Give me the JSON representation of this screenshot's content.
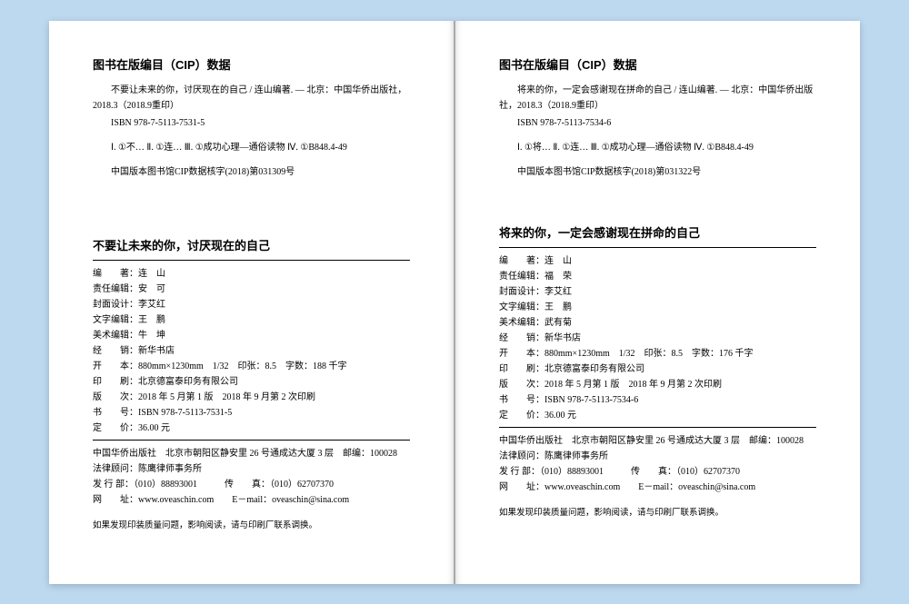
{
  "left": {
    "cip_heading": "图书在版编目（CIP）数据",
    "cip_text1": "不要让未来的你，讨厌现在的自己 / 连山编著. — 北京：中国华侨出版社，2018.3（2018.9重印）",
    "isbn": "ISBN 978-7-5113-7531-5",
    "classify": "Ⅰ. ①不… Ⅱ. ①连… Ⅲ. ①成功心理—通俗读物 Ⅳ. ①B848.4-49",
    "catalog_no": "中国版本图书馆CIP数据核字(2018)第031309号",
    "book_title": "不要让未来的你，讨厌现在的自己",
    "credits": [
      "编　　著：连　山",
      "责任编辑：安　可",
      "封面设计：李艾红",
      "文字编辑：王　鹏",
      "美术编辑：牛　坤",
      "经　　销：新华书店",
      "开　　本：880mm×1230mm　1/32　印张：8.5　字数：188 千字",
      "印　　刷：北京德富泰印务有限公司",
      "版　　次：2018 年 5 月第 1 版　2018 年 9 月第 2 次印刷",
      "书　　号：ISBN 978-7-5113-7531-5",
      "定　　价：36.00 元"
    ],
    "publisher": [
      "中国华侨出版社　北京市朝阳区静安里 26 号通成达大厦 3 层　邮编：100028",
      "法律顾问：陈鹰律师事务所",
      "发 行 部：（010）88893001　　　传　　真：（010）62707370",
      "网　　址：www.oveaschin.com　　E－mail：oveaschin@sina.com"
    ],
    "note": "如果发现印装质量问题，影响阅读，请与印刷厂联系调换。"
  },
  "right": {
    "cip_heading": "图书在版编目（CIP）数据",
    "cip_text1": "将来的你，一定会感谢现在拼命的自己 / 连山编著. — 北京：中国华侨出版社，2018.3（2018.9重印）",
    "isbn": "ISBN 978-7-5113-7534-6",
    "classify": "Ⅰ. ①将… Ⅱ. ①连… Ⅲ. ①成功心理—通俗读物 Ⅳ. ①B848.4-49",
    "catalog_no": "中国版本图书馆CIP数据核字(2018)第031322号",
    "book_title": "将来的你，一定会感谢现在拼命的自己",
    "credits": [
      "编　　著：连　山",
      "责任编辑：福　荣",
      "封面设计：李艾红",
      "文字编辑：王　鹏",
      "美术编辑：武有菊",
      "经　　销：新华书店",
      "开　　本：880mm×1230mm　1/32　印张：8.5　字数：176 千字",
      "印　　刷：北京德富泰印务有限公司",
      "版　　次：2018 年 5 月第 1 版　2018 年 9 月第 2 次印刷",
      "书　　号：ISBN 978-7-5113-7534-6",
      "定　　价：36.00 元"
    ],
    "publisher": [
      "中国华侨出版社　北京市朝阳区静安里 26 号通成达大厦 3 层　邮编：100028",
      "法律顾问：陈鹰律师事务所",
      "发 行 部：（010）88893001　　　传　　真：（010）62707370",
      "网　　址：www.oveaschin.com　　E－mail：oveaschin@sina.com"
    ],
    "note": "如果发现印装质量问题，影响阅读，请与印刷厂联系调换。"
  }
}
